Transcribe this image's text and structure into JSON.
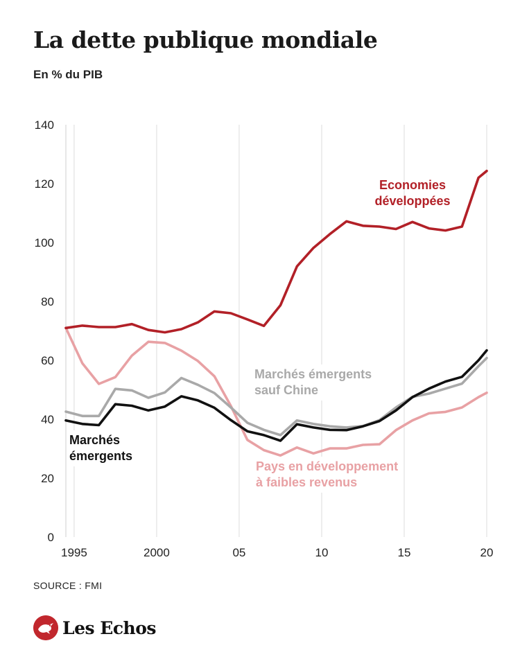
{
  "title": "La dette publique mondiale",
  "subtitle": "En % du PIB",
  "source": "SOURCE : FMI",
  "brand": "Les Echos",
  "colors": {
    "developed": "#b22027",
    "emerging": "#111111",
    "emerging_ex_china": "#a9a9a9",
    "low_income": "#e8a1a4",
    "brand": "#c1272d"
  },
  "chart_data": {
    "type": "line",
    "title": "La dette publique mondiale",
    "ylabel": "En % du PIB",
    "xlabel": "",
    "ylim": [
      0,
      140
    ],
    "xlim": [
      1994.5,
      2020
    ],
    "yticks": [
      0,
      20,
      40,
      60,
      80,
      100,
      120,
      140
    ],
    "xticks": [
      {
        "value": 1995,
        "label": "1995"
      },
      {
        "value": 2000,
        "label": "2000"
      },
      {
        "value": 2005,
        "label": "05"
      },
      {
        "value": 2010,
        "label": "10"
      },
      {
        "value": 2015,
        "label": "15"
      },
      {
        "value": 2020,
        "label": "20"
      }
    ],
    "grid": "vertical",
    "x": [
      1994.5,
      1995.5,
      1996.5,
      1997.5,
      1998.5,
      1999.5,
      2000.5,
      2001.5,
      2002.5,
      2003.5,
      2004.5,
      2005.5,
      2006.5,
      2007.5,
      2008.5,
      2009.5,
      2010.5,
      2011.5,
      2012.5,
      2013.5,
      2014.5,
      2015.5,
      2016.5,
      2017.5,
      2018.5,
      2019.5,
      2020
    ],
    "series": [
      {
        "name": "Economies développées",
        "color_key": "developed",
        "label_lines": [
          "Economies",
          "développées"
        ],
        "values": [
          71,
          71.8,
          71.3,
          71.3,
          72.3,
          70.3,
          69.5,
          70.6,
          72.9,
          76.6,
          76,
          73.9,
          71.7,
          78.7,
          91.9,
          98.2,
          102.9,
          107.2,
          105.7,
          105.4,
          104.6,
          107,
          104.8,
          104.1,
          105.4,
          122,
          124.3
        ]
      },
      {
        "name": "Marchés émergents sauf Chine",
        "color_key": "emerging_ex_china",
        "label_lines": [
          "Marchés émergents",
          "sauf Chine"
        ],
        "values": [
          42.6,
          41.1,
          41.1,
          50.3,
          49.8,
          47.3,
          49.1,
          54,
          51.7,
          48.9,
          44,
          38.8,
          36.4,
          34.6,
          39.6,
          38.4,
          37.6,
          37.2,
          37.7,
          39.7,
          44,
          47.6,
          48.7,
          50.4,
          52.1,
          58,
          60.8
        ]
      },
      {
        "name": "Marchés émergents",
        "color_key": "emerging",
        "label_lines": [
          "Marchés",
          "émergents"
        ],
        "values": [
          39.6,
          38.4,
          38,
          45.1,
          44.6,
          43,
          44.3,
          47.8,
          46.4,
          43.9,
          39.7,
          35.9,
          34.6,
          32.7,
          38.3,
          37.2,
          36.4,
          36.3,
          37.6,
          39.4,
          43,
          47.5,
          50.4,
          52.8,
          54.4,
          60,
          63.4
        ]
      },
      {
        "name": "Pays en développement à faibles revenus",
        "color_key": "low_income",
        "label_lines": [
          "Pays en développement",
          "à faibles revenus"
        ],
        "values": [
          71,
          59,
          52,
          54.3,
          61.6,
          66.3,
          65.9,
          63.3,
          59.8,
          54.6,
          44.5,
          33,
          29.5,
          27.7,
          30.4,
          28.4,
          30.1,
          30.1,
          31.3,
          31.5,
          36.3,
          39.6,
          42,
          42.5,
          44,
          47.5,
          49
        ]
      }
    ]
  }
}
